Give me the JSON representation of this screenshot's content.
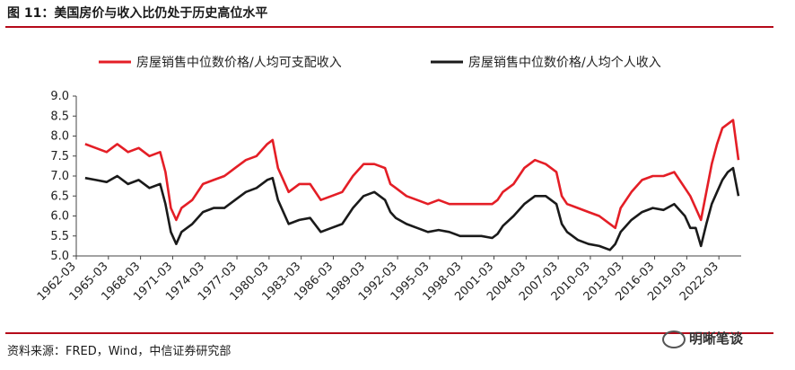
{
  "header": {
    "title": "图 11：美国房价与收入比仍处于历史高位水平"
  },
  "footer": {
    "source": "资料来源：FRED，Wind，中信证券研究部",
    "watermark": "明晰笔谈"
  },
  "colors": {
    "rule": "#b50a1a",
    "series1": "#e41e26",
    "series2": "#1a1a1a"
  },
  "chart_data": {
    "type": "line",
    "title": "",
    "xlabel": "",
    "ylabel": "",
    "ylim": [
      5.0,
      9.0
    ],
    "y_ticks": [
      "5.0",
      "5.5",
      "6.0",
      "6.5",
      "7.0",
      "7.5",
      "8.0",
      "8.5",
      "9.0"
    ],
    "x_tick_labels": [
      "1962-03",
      "1965-03",
      "1968-03",
      "1971-03",
      "1974-03",
      "1977-03",
      "1980-03",
      "1983-03",
      "1986-03",
      "1989-03",
      "1992-03",
      "1995-03",
      "1998-03",
      "2001-03",
      "2004-03",
      "2007-03",
      "2010-03",
      "2013-03",
      "2016-03",
      "2019-03",
      "2022-03"
    ],
    "legend_position": "top",
    "grid": false,
    "series": [
      {
        "name": "房屋销售中位数价格/人均可支配收入",
        "color": "#e41e26",
        "x": [
          1963.0,
          1964.0,
          1965.0,
          1966.0,
          1967.0,
          1968.0,
          1969.0,
          1970.0,
          1970.5,
          1971.0,
          1971.5,
          1972.0,
          1973.0,
          1974.0,
          1975.0,
          1976.0,
          1977.0,
          1978.0,
          1979.0,
          1980.0,
          1980.5,
          1981.0,
          1982.0,
          1983.0,
          1984.0,
          1985.0,
          1986.0,
          1987.0,
          1988.0,
          1989.0,
          1990.0,
          1991.0,
          1991.5,
          1992.0,
          1993.0,
          1994.0,
          1995.0,
          1996.0,
          1997.0,
          1998.0,
          1999.0,
          2000.0,
          2001.0,
          2001.5,
          2002.0,
          2003.0,
          2004.0,
          2005.0,
          2006.0,
          2007.0,
          2007.5,
          2008.0,
          2009.0,
          2010.0,
          2011.0,
          2012.0,
          2012.5,
          2013.0,
          2014.0,
          2015.0,
          2016.0,
          2017.0,
          2018.0,
          2019.0,
          2019.5,
          2020.0,
          2020.5,
          2021.0,
          2021.5,
          2022.0,
          2022.5,
          2023.0,
          2023.5,
          2024.0
        ],
        "values": [
          7.8,
          7.7,
          7.6,
          7.8,
          7.6,
          7.7,
          7.5,
          7.6,
          7.1,
          6.2,
          5.9,
          6.2,
          6.4,
          6.8,
          6.9,
          7.0,
          7.2,
          7.4,
          7.5,
          7.8,
          7.9,
          7.2,
          6.6,
          6.8,
          6.8,
          6.4,
          6.5,
          6.6,
          7.0,
          7.3,
          7.3,
          7.2,
          6.8,
          6.7,
          6.5,
          6.4,
          6.3,
          6.4,
          6.3,
          6.3,
          6.3,
          6.3,
          6.3,
          6.4,
          6.6,
          6.8,
          7.2,
          7.4,
          7.3,
          7.1,
          6.5,
          6.3,
          6.2,
          6.1,
          6.0,
          5.8,
          5.7,
          6.2,
          6.6,
          6.9,
          7.0,
          7.0,
          7.1,
          6.7,
          6.5,
          6.2,
          5.9,
          6.6,
          7.3,
          7.8,
          8.2,
          8.3,
          8.4,
          7.4
        ]
      },
      {
        "name": "房屋销售中位数价格/人均个人收入",
        "color": "#1a1a1a",
        "x": [
          1963.0,
          1964.0,
          1965.0,
          1966.0,
          1967.0,
          1968.0,
          1969.0,
          1970.0,
          1970.5,
          1971.0,
          1971.5,
          1972.0,
          1973.0,
          1974.0,
          1975.0,
          1976.0,
          1977.0,
          1978.0,
          1979.0,
          1980.0,
          1980.5,
          1981.0,
          1982.0,
          1983.0,
          1984.0,
          1985.0,
          1986.0,
          1987.0,
          1988.0,
          1989.0,
          1990.0,
          1991.0,
          1991.5,
          1992.0,
          1993.0,
          1994.0,
          1995.0,
          1996.0,
          1997.0,
          1998.0,
          1999.0,
          2000.0,
          2001.0,
          2001.5,
          2002.0,
          2003.0,
          2004.0,
          2005.0,
          2006.0,
          2007.0,
          2007.5,
          2008.0,
          2009.0,
          2010.0,
          2011.0,
          2012.0,
          2012.5,
          2013.0,
          2014.0,
          2015.0,
          2016.0,
          2017.0,
          2018.0,
          2019.0,
          2019.5,
          2020.0,
          2020.5,
          2021.0,
          2021.5,
          2022.0,
          2022.5,
          2023.0,
          2023.5,
          2024.0
        ],
        "values": [
          6.95,
          6.9,
          6.85,
          7.0,
          6.8,
          6.9,
          6.7,
          6.8,
          6.3,
          5.6,
          5.3,
          5.6,
          5.8,
          6.1,
          6.2,
          6.2,
          6.4,
          6.6,
          6.7,
          6.9,
          6.95,
          6.4,
          5.8,
          5.9,
          5.95,
          5.6,
          5.7,
          5.8,
          6.2,
          6.5,
          6.6,
          6.4,
          6.1,
          5.95,
          5.8,
          5.7,
          5.6,
          5.65,
          5.6,
          5.5,
          5.5,
          5.5,
          5.45,
          5.55,
          5.75,
          6.0,
          6.3,
          6.5,
          6.5,
          6.3,
          5.8,
          5.6,
          5.4,
          5.3,
          5.25,
          5.15,
          5.3,
          5.6,
          5.9,
          6.1,
          6.2,
          6.15,
          6.3,
          6.0,
          5.7,
          5.7,
          5.25,
          5.8,
          6.3,
          6.6,
          6.9,
          7.1,
          7.2,
          6.5
        ]
      }
    ]
  }
}
